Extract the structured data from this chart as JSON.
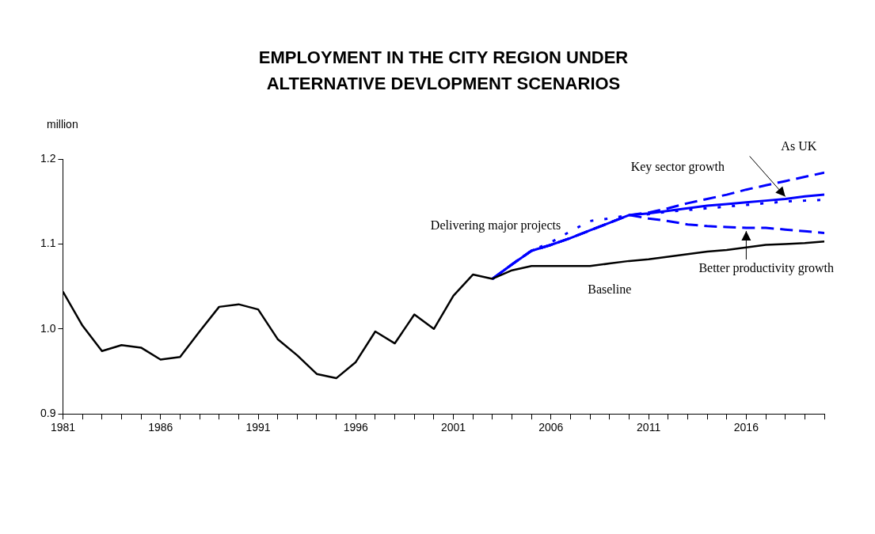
{
  "chart_data": {
    "type": "line",
    "title": "EMPLOYMENT IN THE CITY REGION UNDER ALTERNATIVE DEVLOPMENT SCENARIOS",
    "ylabel": "million",
    "xlim": [
      1981,
      2020
    ],
    "xticks": [
      1981,
      {
        "value": 1982,
        "label": null
      },
      {
        "value": 1983,
        "label": null
      },
      {
        "value": 1984,
        "label": null
      },
      {
        "value": 1985,
        "label": null
      },
      1986,
      {
        "value": 1987,
        "label": null
      },
      {
        "value": 1988,
        "label": null
      },
      {
        "value": 1989,
        "label": null
      },
      {
        "value": 1990,
        "label": null
      },
      1991,
      {
        "value": 1992,
        "label": null
      },
      {
        "value": 1993,
        "label": null
      },
      {
        "value": 1994,
        "label": null
      },
      {
        "value": 1995,
        "label": null
      },
      1996,
      {
        "value": 1997,
        "label": null
      },
      {
        "value": 1998,
        "label": null
      },
      {
        "value": 1999,
        "label": null
      },
      {
        "value": 2000,
        "label": null
      },
      2001,
      {
        "value": 2002,
        "label": null
      },
      {
        "value": 2003,
        "label": null
      },
      {
        "value": 2004,
        "label": null
      },
      {
        "value": 2005,
        "label": null
      },
      2006,
      {
        "value": 2007,
        "label": null
      },
      {
        "value": 2008,
        "label": null
      },
      {
        "value": 2009,
        "label": null
      },
      {
        "value": 2010,
        "label": null
      },
      2011,
      {
        "value": 2012,
        "label": null
      },
      {
        "value": 2013,
        "label": null
      },
      {
        "value": 2014,
        "label": null
      },
      {
        "value": 2015,
        "label": null
      },
      2016,
      {
        "value": 2017,
        "label": null
      },
      {
        "value": 2018,
        "label": null
      },
      {
        "value": 2019,
        "label": null
      },
      {
        "value": 2020,
        "label": null
      }
    ],
    "ylim": [
      0.9,
      1.2
    ],
    "yticks": [
      {
        "value": 0.9,
        "label": "0.9"
      },
      {
        "value": 1.0,
        "label": "1.0"
      },
      {
        "value": 1.1,
        "label": "1.1"
      },
      {
        "value": 1.2,
        "label": "1.2"
      }
    ],
    "grid": false,
    "legend": false,
    "marker": "none",
    "annotations": [
      "Key sector growth",
      {
        "text": "Better productivity growth",
        "x": 2016,
        "y": 1.119
      }
    ],
    "series": [
      {
        "name": "Baseline",
        "color": "#000000",
        "line_style": "solid",
        "x": [
          1981,
          1982,
          1983,
          1984,
          1985,
          1986,
          1987,
          1988,
          1989,
          1990,
          1991,
          1992,
          1993,
          1994,
          1995,
          1996,
          1997,
          1998,
          1999,
          2000,
          2001,
          2002,
          2003,
          2004,
          2005,
          2006,
          2007,
          2008,
          2009,
          2010,
          2011,
          2012,
          2013,
          2014,
          2015,
          2016,
          2017,
          2018,
          2019,
          2020
        ],
        "values": [
          1.044,
          1.004,
          0.974,
          0.981,
          0.978,
          0.964,
          0.967,
          0.997,
          1.026,
          1.029,
          1.023,
          0.988,
          0.969,
          0.947,
          0.942,
          0.961,
          0.997,
          0.983,
          1.017,
          1.0,
          1.039,
          1.064,
          1.059,
          1.069,
          1.074,
          1.074,
          1.074,
          1.074,
          1.077,
          1.08,
          1.082,
          1.085,
          1.088,
          1.091,
          1.093,
          1.096,
          1.099,
          1.1,
          1.101,
          1.103
        ]
      },
      {
        "name": "As UK",
        "color": "#0000ff",
        "line_style": "dashed",
        "x": [
          2003,
          2004,
          2005,
          2006,
          2007,
          2008,
          2009,
          2010,
          2011,
          2012,
          2013,
          2014,
          2015,
          2016,
          2017,
          2018,
          2019,
          2020
        ],
        "values": [
          1.059,
          1.076,
          1.092,
          1.099,
          1.107,
          1.116,
          1.125,
          1.134,
          1.137,
          1.142,
          1.148,
          1.153,
          1.158,
          1.164,
          1.169,
          1.174,
          1.179,
          1.184
        ]
      },
      {
        "color": "#0000ff",
        "line_style": "solid",
        "x": [
          2003,
          2004,
          2005,
          2006,
          2007,
          2008,
          2009,
          2010,
          2011,
          2012,
          2013,
          2014,
          2015,
          2016,
          2017,
          2018,
          2019,
          2020
        ],
        "values": [
          1.059,
          1.076,
          1.092,
          1.099,
          1.107,
          1.116,
          1.125,
          1.134,
          1.136,
          1.139,
          1.142,
          1.145,
          1.147,
          1.149,
          1.151,
          1.153,
          1.156,
          1.158
        ]
      },
      {
        "name": "Delivering major projects",
        "color": "#0000ff",
        "line_style": "dotted",
        "x": [
          2003,
          2004,
          2005,
          2006,
          2007,
          2008,
          2009,
          2010,
          2011,
          2012,
          2013,
          2014,
          2015,
          2016,
          2017,
          2018,
          2019,
          2020
        ],
        "values": [
          1.059,
          1.076,
          1.092,
          1.102,
          1.115,
          1.127,
          1.13,
          1.134,
          1.135,
          1.138,
          1.14,
          1.142,
          1.144,
          1.146,
          1.148,
          1.15,
          1.151,
          1.152
        ]
      },
      {
        "color": "#0000ff",
        "line_style": "dashed",
        "x": [
          2003,
          2004,
          2005,
          2006,
          2007,
          2008,
          2009,
          2010,
          2011,
          2012,
          2013,
          2014,
          2015,
          2016,
          2017,
          2018,
          2019,
          2020
        ],
        "values": [
          1.059,
          1.076,
          1.092,
          1.099,
          1.107,
          1.116,
          1.125,
          1.134,
          1.13,
          1.127,
          1.123,
          1.121,
          1.12,
          1.119,
          1.119,
          1.117,
          1.115,
          1.113
        ]
      }
    ]
  }
}
